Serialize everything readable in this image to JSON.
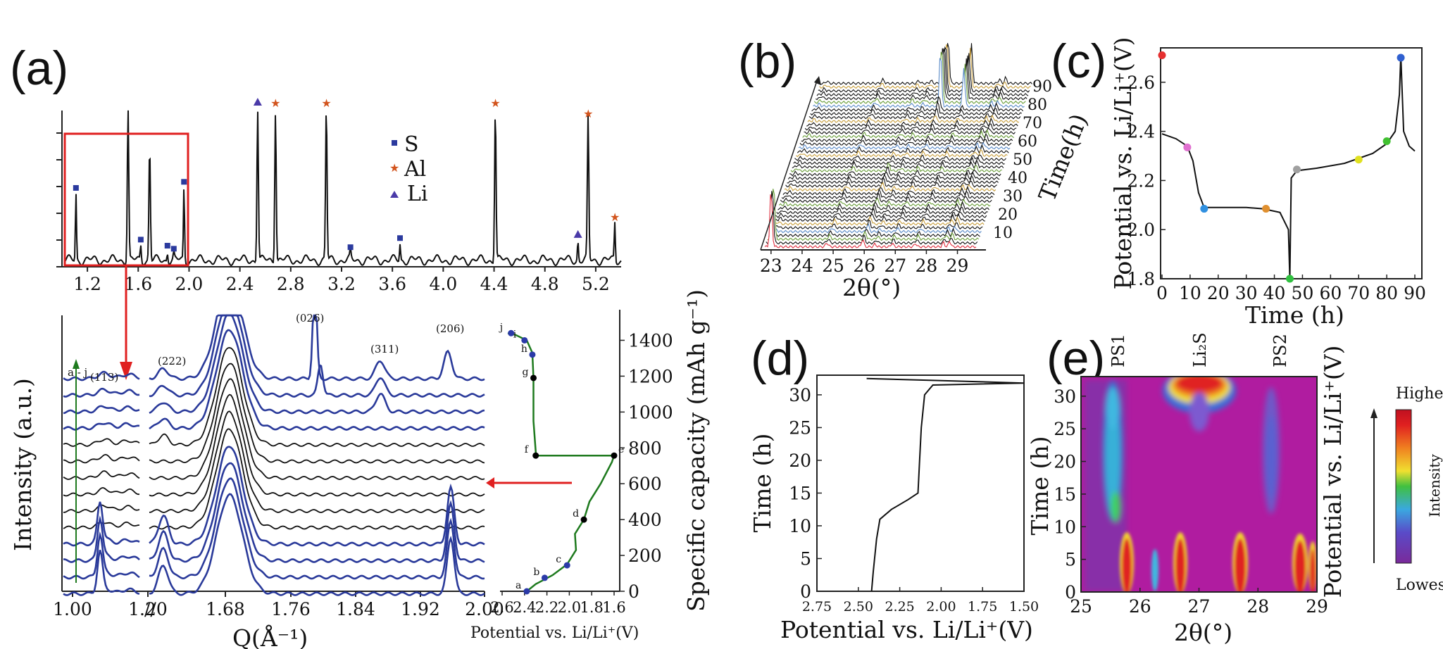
{
  "figure": {
    "labels": [
      "(a)",
      "(b)",
      "(c)",
      "(d)",
      "(e)"
    ]
  },
  "chart_data": [
    {
      "panel": "a-top",
      "type": "line",
      "x_ticks": [
        "1.2",
        "1.6",
        "2.0",
        "2.4",
        "2.8",
        "3.2",
        "3.6",
        "4.0",
        "4.4",
        "4.8",
        "5.2"
      ],
      "xlim": [
        1.0,
        5.4
      ],
      "legend": [
        {
          "symbol": "square",
          "label": "S",
          "color": "#2b3a9e"
        },
        {
          "symbol": "star",
          "label": "Al",
          "color": "#d2541d"
        },
        {
          "symbol": "triangle",
          "label": "Li",
          "color": "#4a3aa8"
        }
      ],
      "peaks": [
        {
          "q": 1.11,
          "h": 0.44,
          "marker": "square"
        },
        {
          "q": 1.52,
          "h": 1.0,
          "marker": null
        },
        {
          "q": 1.69,
          "h": 0.75,
          "marker": null
        },
        {
          "q": 1.62,
          "h": 0.1,
          "marker": "square"
        },
        {
          "q": 1.83,
          "h": 0.06,
          "marker": "square"
        },
        {
          "q": 1.88,
          "h": 0.04,
          "marker": "square"
        },
        {
          "q": 1.96,
          "h": 0.48,
          "marker": "square"
        },
        {
          "q": 2.54,
          "h": 1.0,
          "marker": "triangle"
        },
        {
          "q": 2.68,
          "h": 1.0,
          "marker": "star"
        },
        {
          "q": 3.08,
          "h": 1.0,
          "marker": "star"
        },
        {
          "q": 3.27,
          "h": 0.05,
          "marker": "square"
        },
        {
          "q": 3.66,
          "h": 0.11,
          "marker": "square"
        },
        {
          "q": 4.41,
          "h": 1.0,
          "marker": "star"
        },
        {
          "q": 5.06,
          "h": 0.13,
          "marker": "triangle"
        },
        {
          "q": 5.14,
          "h": 0.93,
          "marker": "star"
        },
        {
          "q": 5.35,
          "h": 0.25,
          "marker": "star"
        }
      ]
    },
    {
      "panel": "a-bottom",
      "type": "line",
      "ylabel": "Intensity (a.u.)",
      "xlabel": "Q(Å⁻¹)",
      "x_ticks": [
        "1.00",
        "1.20",
        "1.68",
        "1.76",
        "1.84",
        "1.92",
        "2.00"
      ],
      "peak_labels": [
        "(113)",
        "(222)",
        "(026)",
        "(311)",
        "(206)"
      ],
      "series_label": "a - j",
      "num_curves": 14
    },
    {
      "panel": "a-right",
      "type": "line",
      "xlabel": "Potential vs. Li/Li⁺(V)",
      "ylabel": "Specific capacity (mAh g⁻¹)",
      "x_ticks": [
        "2.6",
        "2.4",
        "2.2",
        "2.0",
        "1.8",
        "1.6"
      ],
      "y_ticks": [
        "0",
        "200",
        "400",
        "600",
        "800",
        "1000",
        "1200",
        "1400"
      ],
      "xlim": [
        2.6,
        1.6
      ],
      "ylim": [
        0,
        1500
      ],
      "curve": [
        {
          "x": 2.38,
          "y": 0
        },
        {
          "x": 2.3,
          "y": 40
        },
        {
          "x": 2.15,
          "y": 90
        },
        {
          "x": 2.02,
          "y": 150
        },
        {
          "x": 1.94,
          "y": 230
        },
        {
          "x": 1.95,
          "y": 320
        },
        {
          "x": 1.87,
          "y": 400
        },
        {
          "x": 1.82,
          "y": 500
        },
        {
          "x": 1.72,
          "y": 600
        },
        {
          "x": 1.62,
          "y": 720
        },
        {
          "x": 1.6,
          "y": 757
        },
        {
          "x": 2.3,
          "y": 757
        },
        {
          "x": 2.3,
          "y": 780
        },
        {
          "x": 2.32,
          "y": 950
        },
        {
          "x": 2.32,
          "y": 1190
        },
        {
          "x": 2.33,
          "y": 1330
        },
        {
          "x": 2.38,
          "y": 1400
        },
        {
          "x": 2.48,
          "y": 1430
        },
        {
          "x": 2.55,
          "y": 1440
        }
      ],
      "points": [
        {
          "label": "a",
          "x": 2.38,
          "y": 0,
          "color": "#2b3aa8"
        },
        {
          "label": "b",
          "x": 2.22,
          "y": 75,
          "color": "#2b3aa8"
        },
        {
          "label": "c",
          "x": 2.02,
          "y": 145,
          "color": "#2b3aa8"
        },
        {
          "label": "d",
          "x": 1.87,
          "y": 400,
          "color": "#000000"
        },
        {
          "label": "e",
          "x": 1.6,
          "y": 757,
          "color": "#000000"
        },
        {
          "label": "f",
          "x": 2.3,
          "y": 757,
          "color": "#000000"
        },
        {
          "label": "g",
          "x": 2.32,
          "y": 1190,
          "color": "#000000"
        },
        {
          "label": "h",
          "x": 2.33,
          "y": 1320,
          "color": "#2b3aa8"
        },
        {
          "label": "i",
          "x": 2.4,
          "y": 1400,
          "color": "#2b3aa8"
        },
        {
          "label": "j",
          "x": 2.52,
          "y": 1440,
          "color": "#2b3aa8"
        }
      ]
    },
    {
      "panel": "b",
      "type": "line",
      "xlabel": "2θ(°)",
      "ylabel": "Time(h)",
      "x_ticks": [
        "23",
        "24",
        "25",
        "26",
        "27",
        "28",
        "29"
      ],
      "time_ticks": [
        "10",
        "20",
        "30",
        "40",
        "50",
        "60",
        "70",
        "80",
        "90"
      ]
    },
    {
      "panel": "c",
      "type": "line",
      "xlabel": "Time (h)",
      "ylabel": "Potential vs. Li/Li⁺(V)",
      "x_ticks": [
        "0",
        "10",
        "20",
        "30",
        "40",
        "50",
        "60",
        "70",
        "80",
        "90"
      ],
      "y_ticks": [
        "1.8",
        "2.0",
        "2.2",
        "2.4",
        "2.6"
      ],
      "xlim": [
        0,
        92
      ],
      "ylim": [
        1.8,
        2.74
      ],
      "curve": [
        {
          "x": 0,
          "y": 2.39
        },
        {
          "x": 5,
          "y": 2.37
        },
        {
          "x": 9,
          "y": 2.34
        },
        {
          "x": 11,
          "y": 2.28
        },
        {
          "x": 13,
          "y": 2.15
        },
        {
          "x": 15,
          "y": 2.09
        },
        {
          "x": 20,
          "y": 2.09
        },
        {
          "x": 30,
          "y": 2.09
        },
        {
          "x": 36,
          "y": 2.085
        },
        {
          "x": 42,
          "y": 2.07
        },
        {
          "x": 45,
          "y": 2.0
        },
        {
          "x": 45.5,
          "y": 1.8
        },
        {
          "x": 46,
          "y": 2.21
        },
        {
          "x": 48,
          "y": 2.24
        },
        {
          "x": 55,
          "y": 2.25
        },
        {
          "x": 65,
          "y": 2.27
        },
        {
          "x": 75,
          "y": 2.31
        },
        {
          "x": 80,
          "y": 2.35
        },
        {
          "x": 83,
          "y": 2.4
        },
        {
          "x": 84.5,
          "y": 2.55
        },
        {
          "x": 85,
          "y": 2.71
        },
        {
          "x": 86,
          "y": 2.4
        },
        {
          "x": 88,
          "y": 2.34
        },
        {
          "x": 90,
          "y": 2.32
        }
      ],
      "points": [
        {
          "x": 0,
          "y": 2.71,
          "color": "#e53030"
        },
        {
          "x": 9,
          "y": 2.335,
          "color": "#e070d0"
        },
        {
          "x": 15,
          "y": 2.085,
          "color": "#3090e0"
        },
        {
          "x": 37,
          "y": 2.085,
          "color": "#e09030"
        },
        {
          "x": 45.5,
          "y": 1.8,
          "color": "#30c040"
        },
        {
          "x": 48,
          "y": 2.245,
          "color": "#a0a0a0"
        },
        {
          "x": 70,
          "y": 2.285,
          "color": "#e0e020"
        },
        {
          "x": 80,
          "y": 2.36,
          "color": "#40c030"
        },
        {
          "x": 85,
          "y": 2.7,
          "color": "#3060d0"
        }
      ]
    },
    {
      "panel": "d",
      "type": "line",
      "xlabel": "Potential vs. Li/Li⁺(V)",
      "ylabel": "Time (h)",
      "x_ticks": [
        "2.75",
        "2.50",
        "2.25",
        "2.00",
        "1.75",
        "1.50"
      ],
      "y_ticks": [
        "0",
        "5",
        "10",
        "15",
        "20",
        "25",
        "30"
      ],
      "xlim": [
        2.75,
        1.5
      ],
      "ylim": [
        0,
        33
      ],
      "curve": [
        {
          "x": 2.42,
          "y": 0
        },
        {
          "x": 2.41,
          "y": 3
        },
        {
          "x": 2.39,
          "y": 8
        },
        {
          "x": 2.37,
          "y": 11
        },
        {
          "x": 2.3,
          "y": 12.5
        },
        {
          "x": 2.2,
          "y": 14
        },
        {
          "x": 2.14,
          "y": 15
        },
        {
          "x": 2.13,
          "y": 20
        },
        {
          "x": 2.12,
          "y": 25
        },
        {
          "x": 2.1,
          "y": 30
        },
        {
          "x": 2.05,
          "y": 31.5
        },
        {
          "x": 1.5,
          "y": 31.8
        },
        {
          "x": 2.05,
          "y": 32.2
        },
        {
          "x": 2.45,
          "y": 32.5
        }
      ]
    },
    {
      "panel": "e",
      "type": "heatmap",
      "xlabel": "2θ(°)",
      "ylabel": "Time (h)",
      "x_ticks": [
        "25",
        "26",
        "27",
        "28",
        "29"
      ],
      "y_ticks": [
        "0",
        "5",
        "10",
        "15",
        "20",
        "25",
        "30"
      ],
      "top_labels": [
        "PS1",
        "Li₂S",
        "PS2"
      ],
      "right_axis_label": "Potential vs. Li/Li⁺(V)",
      "colorbar": {
        "max_label": "Highest",
        "min_label": "Lowest",
        "title": "Intensity"
      }
    }
  ]
}
